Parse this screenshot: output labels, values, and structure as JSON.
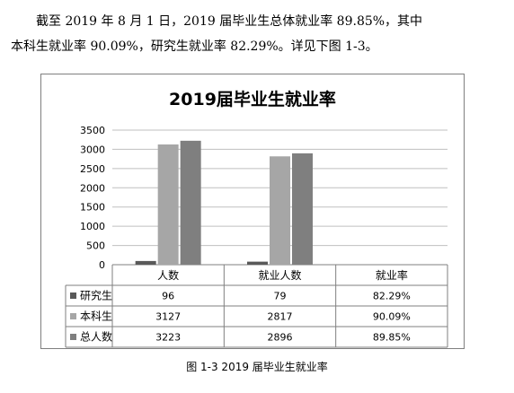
{
  "text": {
    "line1": "截至 2019 年 8 月 1 日，2019 届毕业生总体就业率 89.85%，其中",
    "line2": "本科生就业率 90.09%，研究生就业率 82.29%。详见下图 1-3。",
    "caption": "图 1-3 2019 届毕业生就业率"
  },
  "colors": {
    "研究生": "#595959",
    "本科生": "#a6a6a6",
    "总人数": "#7f7f7f",
    "grid": "#bfbfbf",
    "axis": "#7f7f7f"
  },
  "chart_data": {
    "type": "bar",
    "title": "2019届毕业生就业率",
    "categories": [
      "人数",
      "就业人数",
      "就业率"
    ],
    "ylim": [
      0,
      3500
    ],
    "yticks": [
      "0",
      "500",
      "1000",
      "1500",
      "2000",
      "2500",
      "3000",
      "3500"
    ],
    "grid": true,
    "legend": "data-table",
    "series": [
      {
        "name": "研究生",
        "values": [
          96,
          79,
          null
        ],
        "table": [
          "96",
          "79",
          "82.29%"
        ]
      },
      {
        "name": "本科生",
        "values": [
          3127,
          2817,
          null
        ],
        "table": [
          "3127",
          "2817",
          "90.09%"
        ]
      },
      {
        "name": "总人数",
        "values": [
          3223,
          2896,
          null
        ],
        "table": [
          "3223",
          "2896",
          "89.85%"
        ]
      }
    ]
  }
}
